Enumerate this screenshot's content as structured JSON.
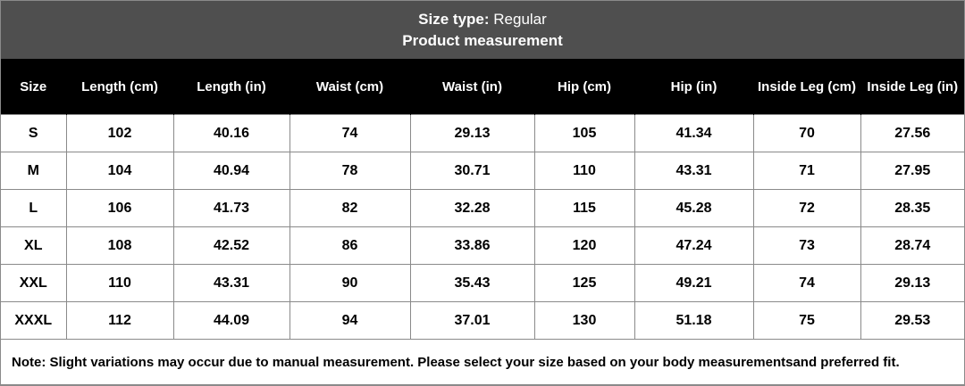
{
  "header": {
    "size_type_label": "Size type:",
    "size_type_value": "Regular",
    "subtitle": "Product measurement"
  },
  "table": {
    "columns": [
      "Size",
      "Length (cm)",
      "Length (in)",
      "Waist (cm)",
      "Waist (in)",
      "Hip (cm)",
      "Hip (in)",
      "Inside Leg (cm)",
      "Inside Leg (in)"
    ],
    "rows": [
      [
        "S",
        102,
        40.16,
        74,
        29.13,
        105,
        41.34,
        70,
        27.56
      ],
      [
        "M",
        104,
        40.94,
        78,
        30.71,
        110,
        43.31,
        71,
        27.95
      ],
      [
        "L",
        106,
        41.73,
        82,
        32.28,
        115,
        45.28,
        72,
        28.35
      ],
      [
        "XL",
        108,
        42.52,
        86,
        33.86,
        120,
        47.24,
        73,
        28.74
      ],
      [
        "XXL",
        110,
        43.31,
        90,
        35.43,
        125,
        49.21,
        74,
        29.13
      ],
      [
        "XXXL",
        112,
        44.09,
        94,
        37.01,
        130,
        51.18,
        75,
        29.53
      ]
    ]
  },
  "note": "Note: Slight variations may occur due to manual measurement. Please select your size based on your body measurementsand preferred fit."
}
